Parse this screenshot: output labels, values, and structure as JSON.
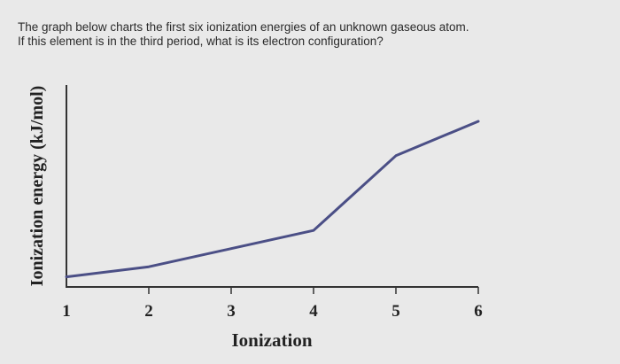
{
  "question": {
    "line1": "The graph below charts the first six ionization energies of an unknown gaseous atom.",
    "line2": "If this element is in the third period, what is its electron configuration?"
  },
  "chart_data": {
    "type": "line",
    "title": "",
    "xlabel": "Ionization",
    "ylabel": "Ionization energy (kJ/mol)",
    "x": [
      1,
      2,
      3,
      4,
      5,
      6
    ],
    "categories": [
      "1",
      "2",
      "3",
      "4",
      "5",
      "6"
    ],
    "series": [
      {
        "values": [
          0.05,
          0.1,
          0.19,
          0.28,
          0.65,
          0.82
        ]
      }
    ],
    "xlim": [
      1,
      6
    ],
    "ylim": [
      0,
      1
    ],
    "y_ticks_labeled": false,
    "grid": false,
    "legend": "none",
    "line_color": "#4b4f86",
    "axis_color": "#333333"
  }
}
